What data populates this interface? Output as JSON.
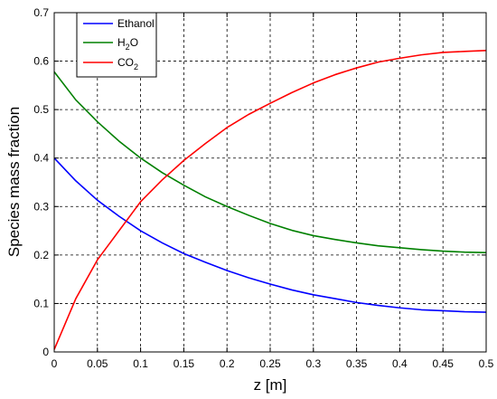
{
  "chart_data": {
    "type": "line",
    "xlabel": "z [m]",
    "ylabel": "Species mass fraction",
    "xlim": [
      0,
      0.5
    ],
    "ylim": [
      0,
      0.7
    ],
    "xticks": [
      "0",
      "0.05",
      "0.1",
      "0.15",
      "0.2",
      "0.25",
      "0.3",
      "0.35",
      "0.4",
      "0.45",
      "0.5"
    ],
    "yticks": [
      "0",
      "0.1",
      "0.2",
      "0.3",
      "0.4",
      "0.5",
      "0.6",
      "0.7"
    ],
    "grid": true,
    "legend_position": "top-left",
    "x": [
      0,
      0.025,
      0.05,
      0.075,
      0.1,
      0.125,
      0.15,
      0.175,
      0.2,
      0.225,
      0.25,
      0.275,
      0.3,
      0.325,
      0.35,
      0.375,
      0.4,
      0.425,
      0.45,
      0.475,
      0.5
    ],
    "series": [
      {
        "name": "Ethanol",
        "color": "#0000ff",
        "values": [
          0.4,
          0.353,
          0.313,
          0.28,
          0.25,
          0.225,
          0.203,
          0.185,
          0.168,
          0.153,
          0.14,
          0.128,
          0.118,
          0.11,
          0.102,
          0.096,
          0.091,
          0.087,
          0.085,
          0.083,
          0.082
        ]
      },
      {
        "name_parts": [
          "H",
          "2",
          "O"
        ],
        "color": "#008000",
        "values": [
          0.578,
          0.52,
          0.475,
          0.435,
          0.4,
          0.37,
          0.344,
          0.32,
          0.3,
          0.282,
          0.265,
          0.251,
          0.24,
          0.232,
          0.225,
          0.219,
          0.215,
          0.211,
          0.208,
          0.206,
          0.205
        ]
      },
      {
        "name_parts": [
          "CO",
          "2",
          ""
        ],
        "color": "#ff0000",
        "values": [
          0.005,
          0.11,
          0.19,
          0.25,
          0.31,
          0.355,
          0.395,
          0.43,
          0.463,
          0.49,
          0.513,
          0.535,
          0.555,
          0.572,
          0.586,
          0.598,
          0.606,
          0.613,
          0.618,
          0.62,
          0.622
        ]
      }
    ]
  }
}
